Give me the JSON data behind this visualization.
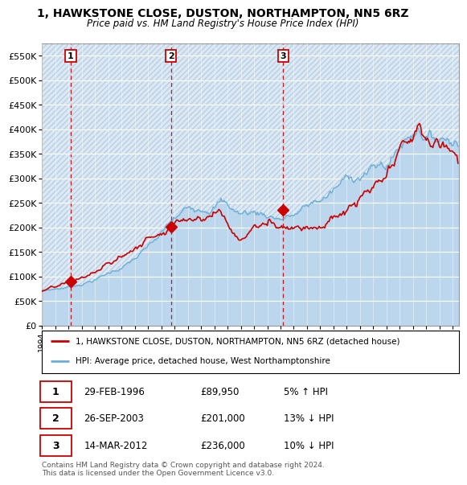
{
  "title1": "1, HAWKSTONE CLOSE, DUSTON, NORTHAMPTON, NN5 6RZ",
  "title2": "Price paid vs. HM Land Registry's House Price Index (HPI)",
  "ylim": [
    0,
    575000
  ],
  "yticks": [
    0,
    50000,
    100000,
    150000,
    200000,
    250000,
    300000,
    350000,
    400000,
    450000,
    500000,
    550000
  ],
  "ytick_labels": [
    "£0",
    "£50K",
    "£100K",
    "£150K",
    "£200K",
    "£250K",
    "£300K",
    "£350K",
    "£400K",
    "£450K",
    "£500K",
    "£550K"
  ],
  "hpi_color": "#6baed6",
  "price_color": "#cc0000",
  "xmin": 1994.0,
  "xmax": 2025.5,
  "transactions": [
    {
      "year": 1996.15,
      "price": 89950,
      "label": "1"
    },
    {
      "year": 2003.73,
      "price": 201000,
      "label": "2"
    },
    {
      "year": 2012.2,
      "price": 236000,
      "label": "3"
    }
  ],
  "legend_line1": "1, HAWKSTONE CLOSE, DUSTON, NORTHAMPTON, NN5 6RZ (detached house)",
  "legend_line2": "HPI: Average price, detached house, West Northamptonshire",
  "table_rows": [
    {
      "num": "1",
      "date": "29-FEB-1996",
      "price": "£89,950",
      "hpi": "5% ↑ HPI"
    },
    {
      "num": "2",
      "date": "26-SEP-2003",
      "price": "£201,000",
      "hpi": "13% ↓ HPI"
    },
    {
      "num": "3",
      "date": "14-MAR-2012",
      "price": "£236,000",
      "hpi": "10% ↓ HPI"
    }
  ],
  "footer": "Contains HM Land Registry data © Crown copyright and database right 2024.\nThis data is licensed under the Open Government Licence v3.0."
}
